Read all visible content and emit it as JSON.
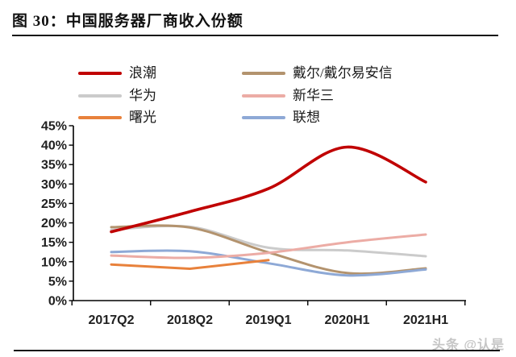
{
  "figure": {
    "title": "图 30：中国服务器厂商收入份额",
    "watermark": "头条 @认是"
  },
  "chart_data": {
    "type": "line",
    "title": "中国服务器厂商收入份额",
    "categories": [
      "2017Q2",
      "2018Q2",
      "2019Q1",
      "2020H1",
      "2021H1"
    ],
    "unit": "%",
    "ylim": [
      0,
      45
    ],
    "ytick_step": 5,
    "ytick_labels": [
      "0%",
      "5%",
      "10%",
      "15%",
      "20%",
      "25%",
      "30%",
      "35%",
      "40%",
      "45%"
    ],
    "grid": false,
    "legend_position": "top",
    "series": [
      {
        "id": "inspur",
        "name": "浪潮",
        "color": "#c00000",
        "emphasis": true,
        "smooth": true,
        "values": [
          17.7,
          22.9,
          28.8,
          39.5,
          30.5
        ]
      },
      {
        "id": "dell-emc",
        "name": "戴尔/戴尔易安信",
        "color": "#b3936e",
        "emphasis": false,
        "smooth": true,
        "values": [
          18.9,
          18.8,
          12.4,
          7.1,
          8.3
        ]
      },
      {
        "id": "huawei",
        "name": "华为",
        "color": "#cbcbcb",
        "emphasis": false,
        "smooth": true,
        "values": [
          18.2,
          19.0,
          13.6,
          12.9,
          11.4
        ]
      },
      {
        "id": "h3c",
        "name": "新华三",
        "color": "#ecaca5",
        "emphasis": false,
        "smooth": true,
        "values": [
          11.6,
          11.0,
          12.3,
          15.0,
          17.0
        ]
      },
      {
        "id": "sugon",
        "name": "曙光",
        "color": "#e8813b",
        "emphasis": false,
        "smooth": false,
        "values": [
          9.3,
          8.2,
          10.4,
          null,
          null
        ]
      },
      {
        "id": "lenovo",
        "name": "联想",
        "color": "#8ea9d6",
        "emphasis": false,
        "smooth": true,
        "values": [
          12.5,
          12.7,
          9.6,
          6.5,
          8.0
        ]
      }
    ]
  }
}
